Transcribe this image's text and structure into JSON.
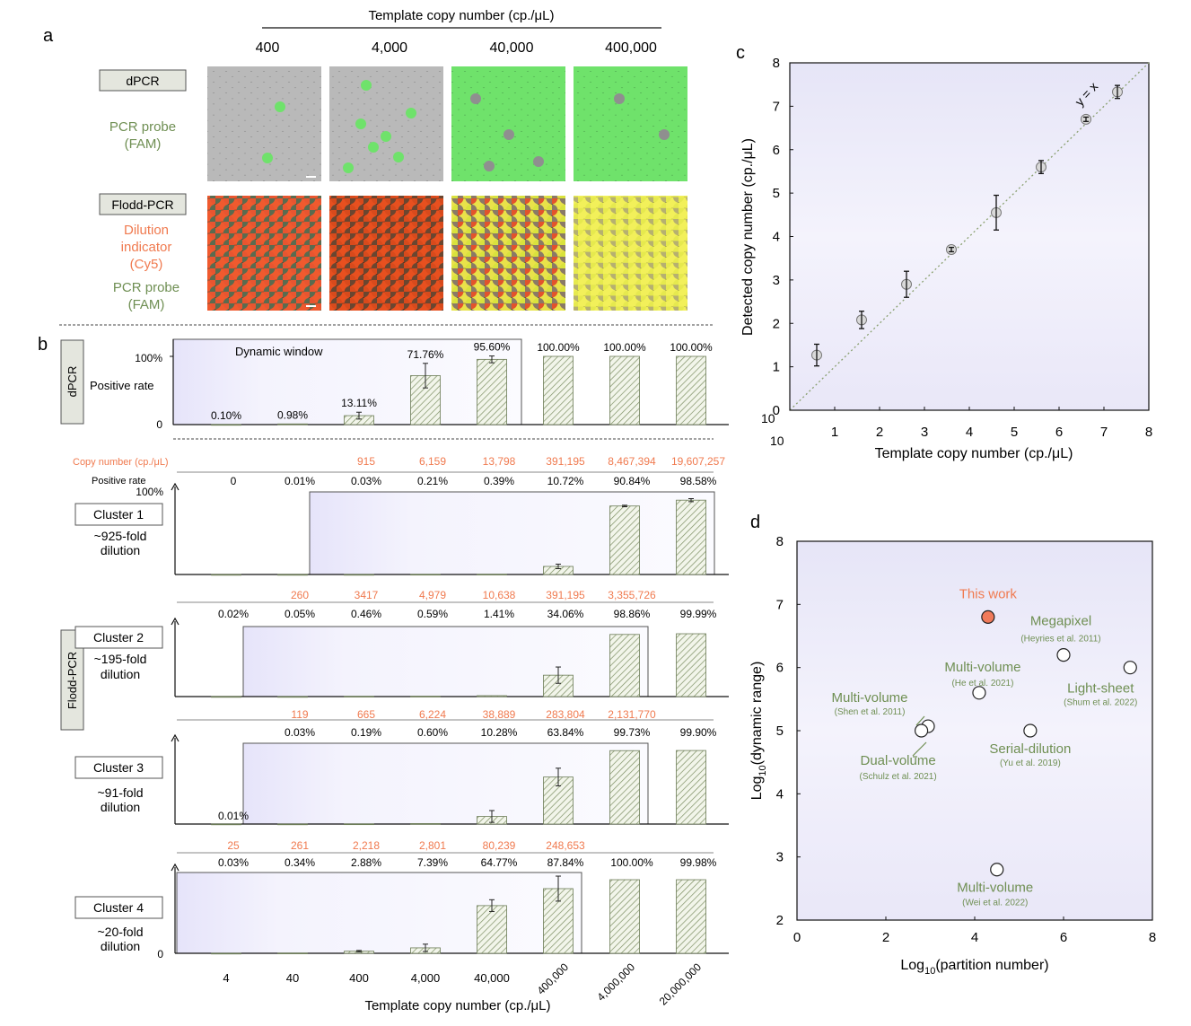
{
  "panel_letters": {
    "a": "a",
    "b": "b",
    "c": "c",
    "d": "d"
  },
  "colors": {
    "green_text": "#6f8f53",
    "orange_text": "#f07a4f",
    "bar_hatch": "#7d8f64",
    "window_fill": "#ebeafb",
    "this_work_fill": "#f07a5a"
  },
  "panel_a": {
    "header": "Template copy number (cp./μL)",
    "columns": [
      "400",
      "4,000",
      "40,000",
      "400,000"
    ],
    "row1": {
      "method": "dPCR",
      "probe_line1": "PCR probe",
      "probe_line2": "(FAM)"
    },
    "row2": {
      "method": "Flodd-PCR",
      "ind_line1": "Dilution",
      "ind_line2": "indicator",
      "ind_line3": "(Cy5)",
      "probe_line1": "PCR probe",
      "probe_line2": "(FAM)"
    }
  },
  "panel_b": {
    "x_ticks": [
      "4",
      "40",
      "400",
      "4,000",
      "40,000",
      "400,000",
      "4,000,000",
      "20,000,000"
    ],
    "x_label": "Template copy number (cp./μL)",
    "dpcr": {
      "method": "dPCR",
      "ylabel": "Positive rate",
      "ytick_top": "100%",
      "ytick_bottom": "0",
      "window_label": "Dynamic window",
      "window": [
        0,
        4
      ],
      "labels": [
        "0.10%",
        "0.98%",
        "13.11%",
        "71.76%",
        "95.60%",
        "100.00%",
        "100.00%",
        "100.00%"
      ]
    },
    "flodd_label": "Flodd-PCR",
    "copy_header": "Copy number  (cp./μL)",
    "pos_header": "Positive rate",
    "ytick_100": "100%",
    "ytick_0": "0",
    "clusters": [
      {
        "name": "Cluster 1",
        "fold": "~925-fold",
        "dil": "dilution",
        "window": [
          2,
          7
        ],
        "copy": [
          "",
          "",
          "915",
          "6,159",
          "13,798",
          "391,195",
          "8,467,394",
          "19,607,257"
        ],
        "rate": [
          "0",
          "0.01%",
          "0.03%",
          "0.21%",
          "0.39%",
          "10.72%",
          "90.84%",
          "98.58%"
        ]
      },
      {
        "name": "Cluster 2",
        "fold": "~195-fold",
        "dil": "dilution",
        "window": [
          1,
          6
        ],
        "copy": [
          "",
          "260",
          "3417",
          "4,979",
          "10,638",
          "391,195",
          "3,355,726",
          ""
        ],
        "rate": [
          "0.02%",
          "0.05%",
          "0.46%",
          "0.59%",
          "1.41%",
          "34.06%",
          "98.86%",
          "99.99%"
        ]
      },
      {
        "name": "Cluster 3",
        "fold": "~91-fold",
        "dil": "dilution",
        "window": [
          1,
          6
        ],
        "copy": [
          "",
          "119",
          "665",
          "6,224",
          "38,889",
          "283,804",
          "2,131,770",
          ""
        ],
        "rate": [
          "0.01%",
          "0.03%",
          "0.19%",
          "0.60%",
          "10.28%",
          "63.84%",
          "99.73%",
          "99.90%"
        ]
      },
      {
        "name": "Cluster 4",
        "fold": "~20-fold",
        "dil": "dilution",
        "window": [
          0,
          5
        ],
        "copy": [
          "25",
          "261",
          "2,218",
          "2,801",
          "80,239",
          "248,653",
          "",
          ""
        ],
        "rate": [
          "0.03%",
          "0.34%",
          "2.88%",
          "7.39%",
          "64.77%",
          "87.84%",
          "100.00%",
          "99.98%"
        ]
      }
    ]
  },
  "panel_c": {
    "xlabel": "Template copy number (cp./μL)",
    "ylabel": "Detected copy number (cp./μL)",
    "fit_label": "y = x",
    "base_x": "10",
    "base_y": "10"
  },
  "panel_d": {
    "xlabel_pre": "Log",
    "xlabel_sub": "10",
    "xlabel_post": "(partition number)",
    "ylabel_pre": "Log",
    "ylabel_sub": "10",
    "ylabel_post": "(dynamic range)",
    "points": [
      {
        "name": "This work",
        "ref": "",
        "highlight": true
      },
      {
        "name": "Megapixel",
        "ref": "(Heyries et al. 2011)"
      },
      {
        "name": "Light-sheet",
        "ref": "(Shum et al. 2022)"
      },
      {
        "name": "Multi-volume",
        "ref": "(He et al. 2021)"
      },
      {
        "name": "Multi-volume",
        "ref": "(Shen et al. 2011)"
      },
      {
        "name": "Dual-volume",
        "ref": "(Schulz et al. 2021)"
      },
      {
        "name": "Serial-dilution",
        "ref": "(Yu et al. 2019)"
      },
      {
        "name": "Multi-volume",
        "ref": "(Wei et al. 2022)"
      }
    ]
  },
  "chart_data": [
    {
      "type": "bar",
      "panel": "b-dPCR",
      "categories": [
        "4",
        "40",
        "400",
        "4,000",
        "40,000",
        "400,000",
        "4,000,000",
        "20,000,000"
      ],
      "values": [
        0.1,
        0.98,
        13.11,
        71.76,
        95.6,
        100.0,
        100.0,
        100.0
      ],
      "errors": [
        0,
        0,
        5,
        18,
        5,
        0,
        0,
        0
      ],
      "ylabel": "Positive rate",
      "ylim": [
        0,
        100
      ]
    },
    {
      "type": "bar",
      "panel": "b-Cluster 1",
      "categories": [
        "4",
        "40",
        "400",
        "4,000",
        "40,000",
        "400,000",
        "4,000,000",
        "20,000,000"
      ],
      "values": [
        0,
        0.01,
        0.03,
        0.21,
        0.39,
        10.72,
        90.84,
        98.58
      ],
      "errors": [
        0,
        0,
        0,
        0,
        0,
        3,
        1,
        2
      ],
      "ylim": [
        0,
        100
      ]
    },
    {
      "type": "bar",
      "panel": "b-Cluster 2",
      "categories": [
        "4",
        "40",
        "400",
        "4,000",
        "40,000",
        "400,000",
        "4,000,000",
        "20,000,000"
      ],
      "values": [
        0.02,
        0.05,
        0.46,
        0.59,
        1.41,
        34.06,
        98.86,
        99.99
      ],
      "errors": [
        0,
        0,
        0,
        0,
        0,
        13,
        0,
        0
      ],
      "ylim": [
        0,
        100
      ]
    },
    {
      "type": "bar",
      "panel": "b-Cluster 3",
      "categories": [
        "4",
        "40",
        "400",
        "4,000",
        "40,000",
        "400,000",
        "4,000,000",
        "20,000,000"
      ],
      "values": [
        0.01,
        0.03,
        0.19,
        0.6,
        10.28,
        63.84,
        99.73,
        99.9
      ],
      "errors": [
        0,
        0,
        0,
        0,
        8,
        12,
        0,
        0
      ],
      "ylim": [
        0,
        100
      ]
    },
    {
      "type": "bar",
      "panel": "b-Cluster 4",
      "categories": [
        "4",
        "40",
        "400",
        "4,000",
        "40,000",
        "400,000",
        "4,000,000",
        "20,000,000"
      ],
      "values": [
        0.03,
        0.34,
        2.88,
        7.39,
        64.77,
        87.84,
        100.0,
        99.98
      ],
      "errors": [
        0,
        0,
        1,
        5,
        8,
        17,
        0,
        0
      ],
      "ylim": [
        0,
        100
      ]
    },
    {
      "type": "scatter",
      "panel": "c",
      "x": [
        0.6,
        1.6,
        2.6,
        3.6,
        4.6,
        5.6,
        6.6,
        7.3
      ],
      "y": [
        1.27,
        2.08,
        2.9,
        3.7,
        4.55,
        5.6,
        6.7,
        7.33
      ],
      "err": [
        0.25,
        0.2,
        0.3,
        0.05,
        0.4,
        0.15,
        0.05,
        0.15
      ],
      "xlim": [
        0,
        8
      ],
      "ylim": [
        0,
        8
      ],
      "x_ticks": [
        "0",
        "1",
        "2",
        "3",
        "4",
        "5",
        "6",
        "7",
        "8"
      ],
      "y_ticks": [
        "0",
        "1",
        "2",
        "3",
        "4",
        "5",
        "6",
        "7",
        "8"
      ],
      "fit_line": "y = x",
      "xlabel": "Template copy number (cp./μL)",
      "ylabel": "Detected copy number (cp./μL)"
    },
    {
      "type": "scatter",
      "panel": "d",
      "x": [
        4.3,
        6.0,
        7.5,
        4.1,
        2.95,
        2.8,
        5.25,
        4.5
      ],
      "y": [
        6.8,
        6.2,
        6.0,
        5.6,
        5.07,
        5.0,
        5.0,
        2.8
      ],
      "labels": [
        "This work",
        "Megapixel",
        "Light-sheet",
        "Multi-volume",
        "Multi-volume",
        "Dual-volume",
        "Serial-dilution",
        "Multi-volume"
      ],
      "xlim": [
        0,
        8
      ],
      "ylim": [
        2,
        8
      ],
      "x_ticks": [
        "0",
        "2",
        "4",
        "6",
        "8"
      ],
      "y_ticks": [
        "2",
        "3",
        "4",
        "5",
        "6",
        "7",
        "8"
      ]
    }
  ]
}
